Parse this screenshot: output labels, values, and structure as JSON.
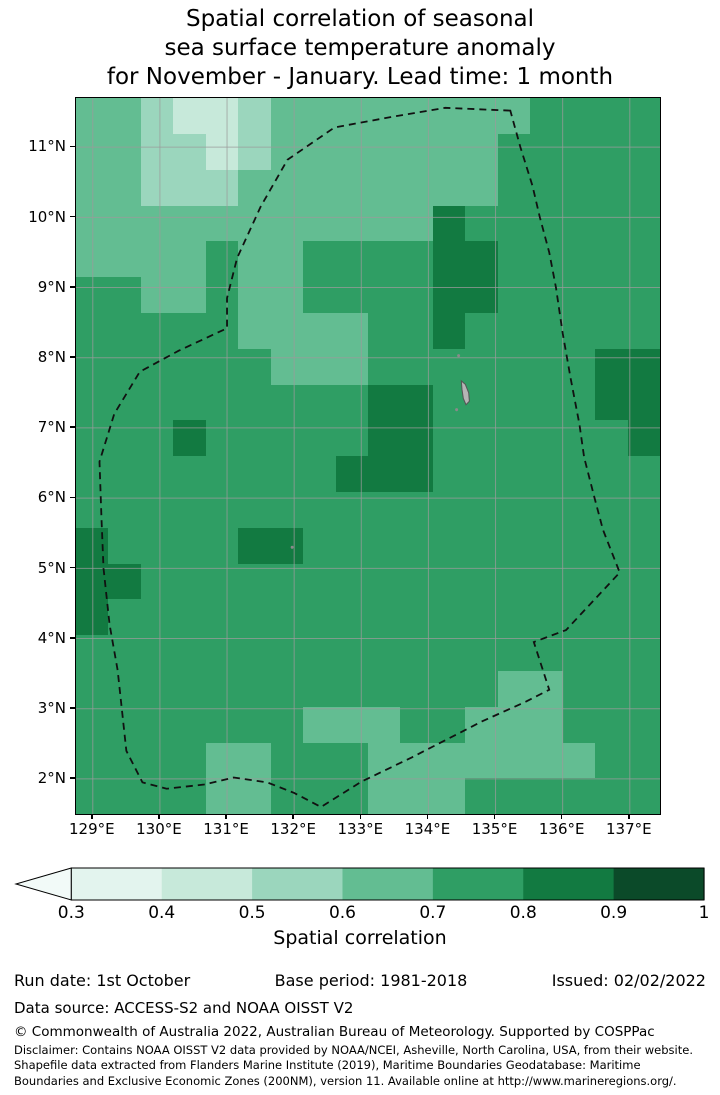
{
  "title": {
    "line1": "Spatial correlation of seasonal",
    "line2": "sea surface temperature anomaly",
    "line3": "for November - January. Lead time: 1 month"
  },
  "chart_data": {
    "type": "heatmap",
    "title": "Spatial correlation of seasonal sea surface temperature anomaly for November - January. Lead time: 1 month",
    "season": "November - January",
    "lead_time": "1 month",
    "colorbar_label": "Spatial correlation",
    "legend_position": "bottom",
    "grid_on": true,
    "lon_range": [
      128.75,
      137.45
    ],
    "lat_range": [
      1.5,
      11.7
    ],
    "x_tick_labels": [
      "129°E",
      "130°E",
      "131°E",
      "132°E",
      "133°E",
      "134°E",
      "135°E",
      "136°E",
      "137°E"
    ],
    "x_tick_values": [
      129,
      130,
      131,
      132,
      133,
      134,
      135,
      136,
      137
    ],
    "y_tick_labels": [
      "2°N",
      "3°N",
      "4°N",
      "5°N",
      "6°N",
      "7°N",
      "8°N",
      "9°N",
      "10°N",
      "11°N"
    ],
    "y_tick_values": [
      2,
      3,
      4,
      5,
      6,
      7,
      8,
      9,
      10,
      11
    ],
    "levels": [
      0.3,
      0.4,
      0.5,
      0.6,
      0.7,
      0.8,
      0.9,
      1.0
    ],
    "palette": [
      "#f2faf8",
      "#e3f4ee",
      "#c7e9da",
      "#9bd6bd",
      "#63bd92",
      "#2f9e64",
      "#127a41",
      "#0b4a29"
    ],
    "level_meaning": "palette index 0 = below 0.3 (arrow), 1..7 = bins 0.3-0.4 ... 0.9-1.0",
    "grid": {
      "ncols": 18,
      "nrows": 20,
      "rows": [
        "443223444444445555",
        "443323444444455555",
        "443334444444455555",
        "444444444446555555",
        "444454455556655555",
        "554454455556655555",
        "555554444556555555",
        "555555444555555566",
        "555555555665555566",
        "555655555665555556",
        "555555556665555555",
        "555555555555555555",
        "655556655555555555",
        "665555555555555555",
        "655555555555555555",
        "555555555555555555",
        "555555555555544555",
        "555555544455444555",
        "555544555444444455",
        "555544555444555555"
      ]
    },
    "eez_boundary": [
      [
        135.22,
        11.52
      ],
      [
        134.25,
        11.56
      ],
      [
        133.45,
        11.43
      ],
      [
        132.6,
        11.28
      ],
      [
        131.9,
        10.82
      ],
      [
        131.5,
        10.15
      ],
      [
        131.15,
        9.42
      ],
      [
        131.0,
        8.85
      ],
      [
        131.0,
        8.42
      ],
      [
        130.28,
        8.1
      ],
      [
        129.7,
        7.8
      ],
      [
        129.32,
        7.2
      ],
      [
        129.1,
        6.52
      ],
      [
        129.13,
        5.7
      ],
      [
        129.16,
        5.0
      ],
      [
        129.25,
        4.2
      ],
      [
        129.37,
        3.55
      ],
      [
        129.5,
        2.4
      ],
      [
        129.74,
        1.95
      ],
      [
        130.1,
        1.86
      ],
      [
        130.66,
        1.92
      ],
      [
        131.1,
        2.02
      ],
      [
        131.6,
        1.95
      ],
      [
        132.0,
        1.8
      ],
      [
        132.4,
        1.6
      ],
      [
        133.0,
        1.96
      ],
      [
        133.76,
        2.31
      ],
      [
        134.8,
        2.82
      ],
      [
        135.45,
        3.1
      ],
      [
        135.8,
        3.27
      ],
      [
        135.57,
        3.95
      ],
      [
        136.05,
        4.12
      ],
      [
        136.85,
        4.94
      ],
      [
        136.6,
        5.55
      ],
      [
        136.47,
        6.02
      ],
      [
        136.32,
        6.58
      ],
      [
        136.25,
        7.05
      ],
      [
        136.12,
        7.7
      ],
      [
        136.0,
        8.35
      ],
      [
        135.9,
        9.0
      ],
      [
        135.8,
        9.5
      ],
      [
        135.66,
        10.0
      ],
      [
        135.55,
        10.45
      ],
      [
        135.37,
        11.0
      ]
    ],
    "islands": {
      "main": [
        [
          134.49,
          7.67
        ],
        [
          134.55,
          7.62
        ],
        [
          134.6,
          7.5
        ],
        [
          134.61,
          7.38
        ],
        [
          134.56,
          7.33
        ],
        [
          134.52,
          7.42
        ],
        [
          134.5,
          7.55
        ]
      ],
      "dots": [
        [
          134.45,
          8.03
        ],
        [
          134.42,
          7.26
        ],
        [
          131.97,
          5.3
        ]
      ]
    }
  },
  "colorbar": {
    "tick_labels": [
      "0.3",
      "0.4",
      "0.5",
      "0.6",
      "0.7",
      "0.8",
      "0.9",
      "1"
    ],
    "label": "Spatial correlation"
  },
  "footer": {
    "run_date": "Run date: 1st October",
    "base_period": "Base period: 1981-2018",
    "issued": "Issued: 02/02/2022",
    "data_source": "Data source: ACCESS-S2 and NOAA OISST V2",
    "copyright": "© Commonwealth of Australia 2022, Australian Bureau of Meteorology. Supported by COSPPac",
    "disclaimer_line1": "Disclaimer: Contains NOAA OISST V2 data provided by NOAA/NCEI, Asheville, North Carolina, USA, from their website.",
    "disclaimer_line2": "Shapefile data extracted from Flanders Marine Institute (2019), Maritime Boundaries Geodatabase: Maritime",
    "disclaimer_line3": "Boundaries and Exclusive Economic Zones (200NM), version 11. Available online at http://www.marineregions.org/."
  }
}
